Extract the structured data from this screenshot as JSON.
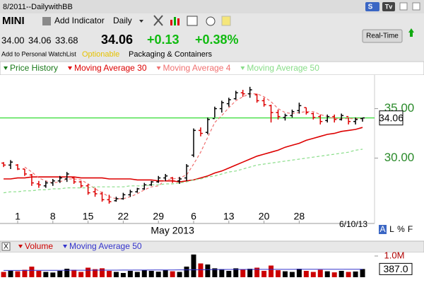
{
  "toolbar": {
    "title": "8/2011--DailywithBB",
    "symbol": "MINI",
    "add_indicator": "Add Indicator",
    "period": "Daily",
    "s_button": "S",
    "tv_button": "Tv"
  },
  "quote": {
    "open": "34.00",
    "high": "34.06",
    "low": "33.68",
    "last": "34.06",
    "change": "+0.13",
    "change_pct": "+0.38%",
    "watchlist": "Add to Personal WatchList",
    "optionable": "Optionable",
    "industry": "Packaging & Containers",
    "realtime": "Real-Time"
  },
  "controls": {
    "panel_buttons": [
      "A",
      "L",
      "%",
      "F"
    ],
    "close": "X"
  },
  "chart_data": [
    {
      "type": "ohlc",
      "categories": [
        "2013-03-27",
        "2013-03-28",
        "2013-04-01",
        "2013-04-02",
        "2013-04-03",
        "2013-04-04",
        "2013-04-05",
        "2013-04-08",
        "2013-04-09",
        "2013-04-10",
        "2013-04-11",
        "2013-04-12",
        "2013-04-15",
        "2013-04-16",
        "2013-04-17",
        "2013-04-18",
        "2013-04-19",
        "2013-04-22",
        "2013-04-23",
        "2013-04-24",
        "2013-04-25",
        "2013-04-26",
        "2013-04-29",
        "2013-04-30",
        "2013-05-01",
        "2013-05-02",
        "2013-05-03",
        "2013-05-06",
        "2013-05-07",
        "2013-05-08",
        "2013-05-09",
        "2013-05-10",
        "2013-05-13",
        "2013-05-14",
        "2013-05-15",
        "2013-05-16",
        "2013-05-17",
        "2013-05-20",
        "2013-05-21",
        "2013-05-22",
        "2013-05-23",
        "2013-05-24",
        "2013-05-28",
        "2013-05-29",
        "2013-05-30",
        "2013-05-31",
        "2013-06-03",
        "2013-06-04",
        "2013-06-05",
        "2013-06-06",
        "2013-06-07",
        "2013-06-10"
      ],
      "series": [
        {
          "name": "Price History",
          "color": "#1a7a1a",
          "up_color": "#000000",
          "down_color": "#dd0000",
          "open": [
            29.5,
            29.3,
            29.3,
            28.9,
            28.3,
            27.4,
            27.2,
            27.5,
            27.7,
            27.9,
            28.0,
            27.6,
            27.2,
            26.6,
            26.4,
            25.8,
            25.7,
            25.9,
            26.3,
            26.6,
            26.9,
            27.3,
            27.6,
            28.0,
            28.0,
            27.7,
            28.0,
            30.3,
            32.8,
            32.6,
            34.0,
            35.0,
            35.5,
            36.0,
            36.6,
            36.5,
            36.4,
            35.8,
            35.3,
            34.6,
            34.1,
            34.3,
            34.8,
            35.1,
            34.5,
            34.2,
            33.8,
            34.2,
            33.9,
            34.2,
            33.7,
            34.0
          ],
          "high": [
            29.6,
            29.8,
            29.4,
            28.9,
            28.4,
            27.7,
            27.7,
            27.9,
            28.2,
            28.6,
            28.1,
            27.7,
            27.4,
            27.0,
            26.6,
            26.3,
            26.1,
            26.5,
            26.8,
            27.0,
            27.5,
            27.7,
            28.2,
            28.4,
            28.1,
            28.1,
            29.4,
            33.0,
            33.1,
            34.1,
            35.2,
            35.8,
            36.1,
            36.8,
            36.9,
            37.2,
            36.5,
            36.1,
            35.4,
            34.9,
            34.5,
            34.9,
            35.6,
            35.1,
            34.6,
            34.4,
            34.4,
            34.4,
            34.5,
            34.1,
            34.1,
            34.06
          ],
          "low": [
            29.1,
            28.9,
            28.8,
            28.2,
            27.2,
            27.0,
            27.0,
            27.2,
            27.5,
            27.6,
            27.4,
            27.0,
            26.3,
            26.1,
            25.6,
            25.4,
            25.6,
            25.8,
            26.1,
            26.5,
            26.8,
            27.2,
            27.5,
            27.7,
            27.5,
            27.4,
            27.7,
            30.1,
            32.2,
            32.4,
            34.1,
            34.6,
            35.2,
            35.9,
            36.2,
            36.1,
            35.6,
            35.2,
            33.6,
            33.9,
            33.8,
            34.1,
            34.5,
            34.4,
            33.9,
            33.4,
            33.6,
            33.6,
            33.8,
            33.4,
            33.4,
            33.68
          ],
          "close": [
            29.3,
            29.6,
            28.9,
            28.4,
            27.5,
            27.3,
            27.5,
            27.7,
            28.0,
            28.4,
            27.6,
            27.2,
            26.5,
            26.4,
            25.8,
            25.6,
            25.9,
            26.3,
            26.6,
            26.9,
            27.3,
            27.6,
            28.0,
            28.2,
            27.7,
            27.9,
            29.2,
            32.8,
            32.5,
            33.9,
            35.0,
            35.6,
            35.9,
            36.6,
            36.5,
            36.9,
            35.8,
            35.4,
            34.6,
            34.2,
            34.3,
            34.7,
            35.3,
            34.6,
            34.1,
            33.7,
            34.2,
            33.9,
            34.3,
            33.7,
            33.9,
            34.06
          ]
        },
        {
          "name": "Moving Average 30",
          "color": "#dd0000",
          "dash": false,
          "values": [
            27.9,
            27.9,
            28.0,
            28.0,
            28.1,
            28.1,
            28.1,
            28.1,
            28.1,
            28.1,
            28.1,
            28.0,
            28.0,
            28.0,
            28.0,
            27.9,
            27.9,
            27.9,
            27.9,
            27.8,
            27.8,
            27.8,
            27.7,
            27.7,
            27.7,
            27.6,
            27.7,
            27.8,
            28.0,
            28.2,
            28.5,
            28.7,
            29.0,
            29.3,
            29.6,
            29.9,
            30.2,
            30.4,
            30.6,
            30.8,
            31.1,
            31.3,
            31.5,
            31.8,
            32.0,
            32.2,
            32.4,
            32.5,
            32.7,
            32.8,
            32.9,
            33.1
          ]
        },
        {
          "name": "Moving Average 4",
          "color": "#f07070",
          "dash": true,
          "values": [
            null,
            null,
            null,
            29.1,
            28.6,
            28.0,
            27.7,
            27.5,
            27.6,
            27.9,
            27.9,
            27.8,
            27.4,
            26.9,
            26.5,
            26.1,
            25.9,
            25.9,
            26.1,
            26.4,
            26.8,
            27.1,
            27.2,
            27.8,
            27.9,
            28.0,
            28.3,
            29.4,
            30.6,
            32.1,
            33.6,
            34.3,
            35.1,
            35.8,
            36.2,
            36.5,
            36.5,
            36.2,
            35.7,
            35.0,
            34.6,
            34.5,
            34.6,
            34.7,
            34.7,
            34.4,
            34.2,
            34.0,
            34.0,
            34.0,
            34.0,
            34.0
          ]
        },
        {
          "name": "Moving Average 50",
          "color": "#88dd88",
          "dash": true,
          "values": [
            26.5,
            26.6,
            26.6,
            26.7,
            26.7,
            26.8,
            26.8,
            26.9,
            26.9,
            27.0,
            27.0,
            27.0,
            27.0,
            27.1,
            27.1,
            27.1,
            27.1,
            27.1,
            27.2,
            27.2,
            27.2,
            27.3,
            27.3,
            27.4,
            27.4,
            27.5,
            27.6,
            27.8,
            27.9,
            28.1,
            28.2,
            28.4,
            28.6,
            28.7,
            28.9,
            29.1,
            29.3,
            29.4,
            29.5,
            29.6,
            29.7,
            29.8,
            29.9,
            30.0,
            30.1,
            30.2,
            30.3,
            30.4,
            30.5,
            30.6,
            30.8,
            30.9
          ]
        }
      ],
      "ylim": [
        23.4,
        38.4
      ],
      "yticks": [
        {
          "value": 35,
          "label": "35.00"
        },
        {
          "value": 30,
          "label": "30.00"
        }
      ],
      "axis_label_color": "#2a8a2a",
      "current": {
        "value": 34.06,
        "label": "34.06"
      },
      "current_line_color": "#33dd33",
      "xticks": [
        {
          "value": "2013-04-01",
          "label": "1"
        },
        {
          "value": "2013-04-08",
          "label": "8"
        },
        {
          "value": "2013-04-15",
          "label": "15"
        },
        {
          "value": "2013-04-22",
          "label": "22"
        },
        {
          "value": "2013-04-29",
          "label": "29"
        },
        {
          "value": "2013-05-06",
          "label": "6"
        },
        {
          "value": "2013-05-13",
          "label": "13"
        },
        {
          "value": "2013-05-20",
          "label": "20"
        },
        {
          "value": "2013-05-28",
          "label": "28"
        }
      ],
      "month_ticks": [
        {
          "value": "2013-05-01",
          "label": "May 2013"
        }
      ],
      "date_label": "6/10/13"
    },
    {
      "type": "volume",
      "series": [
        {
          "name": "Volume",
          "color": "#cc0000",
          "values": [
            250000,
            300000,
            280000,
            350000,
            500000,
            300000,
            250000,
            220000,
            300000,
            400000,
            350000,
            250000,
            450000,
            380000,
            420000,
            300000,
            250000,
            200000,
            300000,
            250000,
            350000,
            300000,
            260000,
            330000,
            280000,
            250000,
            500000,
            1070000,
            650000,
            600000,
            420000,
            380000,
            300000,
            420000,
            350000,
            400000,
            450000,
            300000,
            550000,
            330000,
            280000,
            250000,
            400000,
            300000,
            250000,
            350000,
            280000,
            230000,
            300000,
            250000,
            270000,
            387000
          ]
        },
        {
          "name": "Moving Average 50",
          "color": "#3333cc",
          "values": [
            320000,
            320000,
            321000,
            322000,
            323000,
            324000,
            325000,
            326000,
            327000,
            328000,
            329000,
            330000,
            331000,
            332000,
            333000,
            334000,
            335000,
            336000,
            337000,
            338000,
            339000,
            340000,
            341000,
            342000,
            343000,
            344000,
            346000,
            352000,
            356000,
            360000,
            362000,
            364000,
            365000,
            366000,
            367000,
            368000,
            369000,
            370000,
            371000,
            372000,
            372000,
            372000,
            373000,
            373000,
            373000,
            374000,
            374000,
            374000,
            374000,
            374000,
            375000,
            375000
          ]
        }
      ],
      "ylim": [
        0,
        1200000
      ],
      "yticks": [
        {
          "value": 1000000,
          "label": "1.0M"
        }
      ],
      "current": {
        "value": 387000,
        "label": "387.0"
      }
    }
  ]
}
